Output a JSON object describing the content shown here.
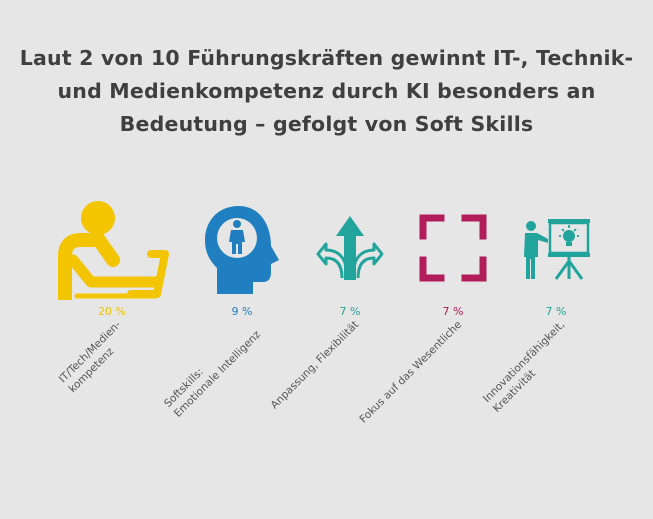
{
  "title_lines": [
    "Laut 2 von 10 Führungskräften gewinnt IT-, Technik-",
    "und Medienkompetenz durch KI besonders an",
    "Bedeutung – gefolgt von Soft Skills"
  ],
  "colors": {
    "yellow": "#f2c500",
    "blue": "#1f7fc1",
    "teal": "#20a49c",
    "magenta": "#b11c5a"
  },
  "chart_data": {
    "type": "table",
    "title": "Laut 2 von 10 Führungskräften gewinnt IT-, Technik- und Medienkompetenz durch KI besonders an Bedeutung – gefolgt von Soft Skills",
    "items": [
      {
        "label_lines": [
          "IT/Tech/Medien-",
          "kompetenz"
        ],
        "value": 20,
        "value_text": "20 %",
        "color": "#f2c500",
        "icon": "laptop-user-icon"
      },
      {
        "label_lines": [
          "Softskills:",
          "Emotionale Intelligenz"
        ],
        "value": 9,
        "value_text": "9 %",
        "color": "#1f7fc1",
        "icon": "head-person-icon"
      },
      {
        "label_lines": [
          "Anpassung, Flexibilität"
        ],
        "value": 7,
        "value_text": "7 %",
        "color": "#20a49c",
        "icon": "split-arrows-icon"
      },
      {
        "label_lines": [
          "Fokus auf das Wesentliche"
        ],
        "value": 7,
        "value_text": "7 %",
        "color": "#b11c5a",
        "icon": "focus-frame-icon"
      },
      {
        "label_lines": [
          "Innovationsfähigkeit,",
          "Kreativität"
        ],
        "value": 7,
        "value_text": "7 %",
        "color": "#20a49c",
        "icon": "presentation-idea-icon"
      }
    ]
  }
}
